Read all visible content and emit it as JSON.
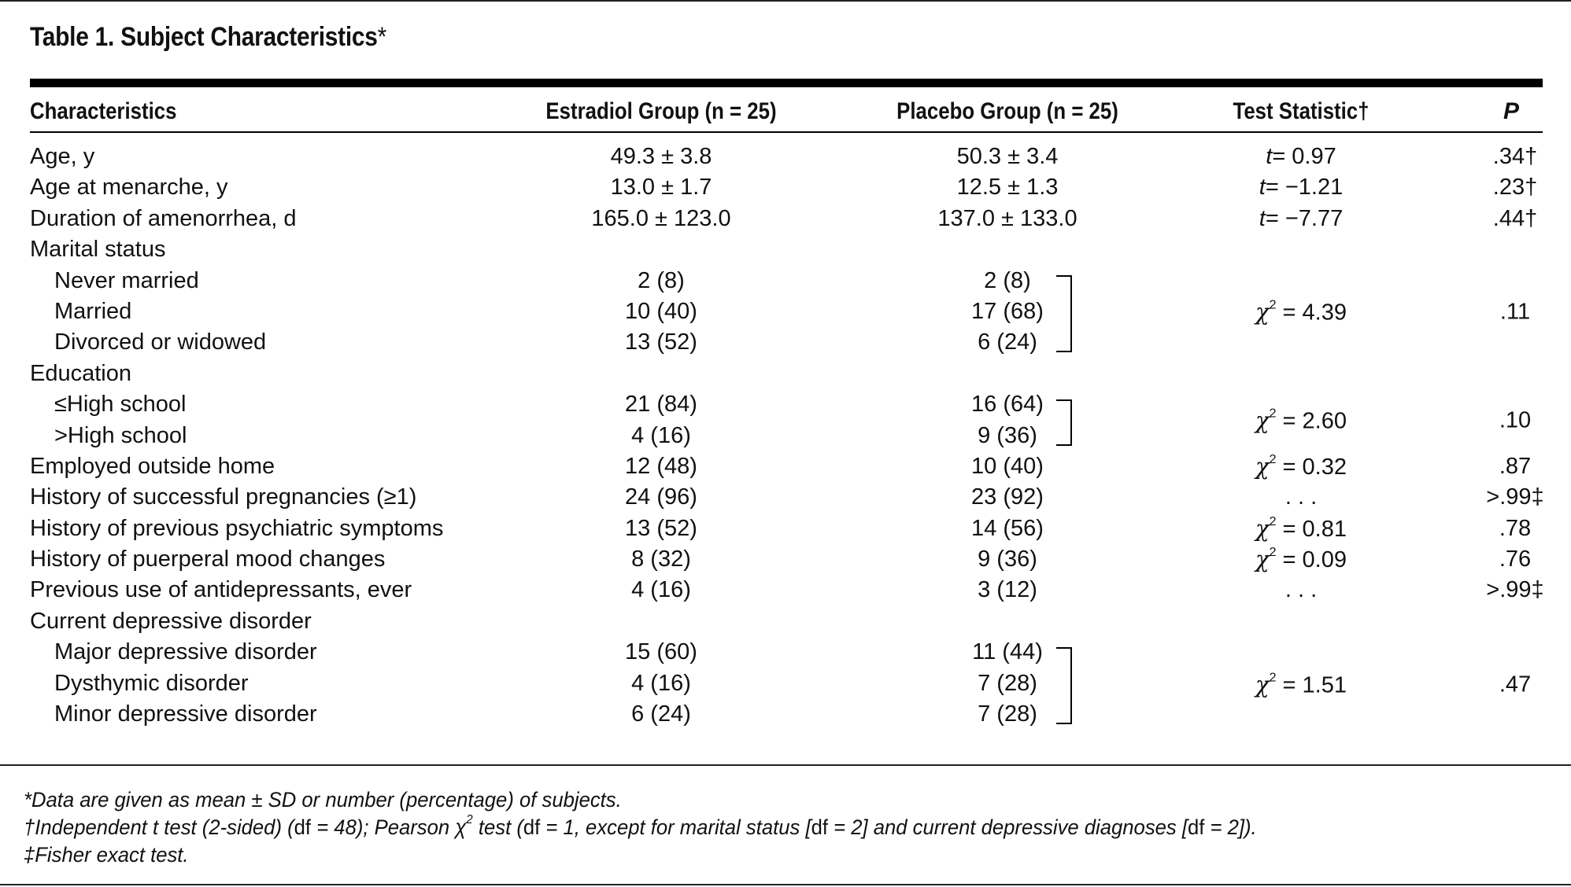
{
  "title": "Table 1. Subject Characteristics",
  "title_marker": "*",
  "headers": {
    "characteristics": "Characteristics",
    "estradiol": "Estradiol Group (n = 25)",
    "placebo": "Placebo Group (n = 25)",
    "test_statistic": "Test Statistic†",
    "p": "P"
  },
  "rows": [
    {
      "label": "Age, y",
      "indent": false,
      "est": "49.3 ± 3.8",
      "pla": "50.3 ± 3.4",
      "stat_prefix": "t",
      "stat": "= 0.97",
      "p": ".34†"
    },
    {
      "label": "Age at menarche, y",
      "indent": false,
      "est": "13.0 ± 1.7",
      "pla": "12.5 ± 1.3",
      "stat_prefix": "t",
      "stat": "= −1.21",
      "p": ".23†"
    },
    {
      "label": "Duration of amenorrhea, d",
      "indent": false,
      "est": "165.0 ± 123.0",
      "pla": "137.0 ± 133.0",
      "stat_prefix": "t",
      "stat": "= −7.77",
      "p": ".44†"
    },
    {
      "label": "Marital status",
      "indent": false,
      "est": "",
      "pla": "",
      "stat_prefix": "",
      "stat": "",
      "p": ""
    },
    {
      "label": "Never married",
      "indent": true,
      "est": "2 (8)",
      "pla": "2 (8)",
      "stat_prefix": "",
      "stat": "",
      "p": ""
    },
    {
      "label": "Married",
      "indent": true,
      "est": "10 (40)",
      "pla": "17 (68)",
      "stat_prefix": "",
      "stat": "",
      "p": ""
    },
    {
      "label": "Divorced or widowed",
      "indent": true,
      "est": "13 (52)",
      "pla": "6 (24)",
      "stat_prefix": "",
      "stat": "",
      "p": ""
    },
    {
      "label": "Education",
      "indent": false,
      "est": "",
      "pla": "",
      "stat_prefix": "",
      "stat": "",
      "p": ""
    },
    {
      "label": "≤High school",
      "indent": true,
      "est": "21 (84)",
      "pla": "16 (64)",
      "stat_prefix": "",
      "stat": "",
      "p": ""
    },
    {
      "label": ">High school",
      "indent": true,
      "est": "4 (16)",
      "pla": "9 (36)",
      "stat_prefix": "",
      "stat": "",
      "p": ""
    },
    {
      "label": "Employed outside home",
      "indent": false,
      "est": "12 (48)",
      "pla": "10 (40)",
      "stat_prefix": "χ2",
      "stat": "= 0.32",
      "p": ".87"
    },
    {
      "label": "History of successful pregnancies (≥1)",
      "indent": false,
      "est": "24 (96)",
      "pla": "23 (92)",
      "stat_prefix": "",
      "stat": ". . .",
      "p": ">.99‡"
    },
    {
      "label": "History of previous psychiatric symptoms",
      "indent": false,
      "est": "13 (52)",
      "pla": "14 (56)",
      "stat_prefix": "χ2",
      "stat": "= 0.81",
      "p": ".78"
    },
    {
      "label": "History of puerperal mood changes",
      "indent": false,
      "est": "8 (32)",
      "pla": "9 (36)",
      "stat_prefix": "χ2",
      "stat": "= 0.09",
      "p": ".76"
    },
    {
      "label": "Previous use of antidepressants, ever",
      "indent": false,
      "est": "4 (16)",
      "pla": "3 (12)",
      "stat_prefix": "",
      "stat": ". . .",
      "p": ">.99‡"
    },
    {
      "label": "Current depressive disorder",
      "indent": false,
      "est": "",
      "pla": "",
      "stat_prefix": "",
      "stat": "",
      "p": ""
    },
    {
      "label": "Major depressive disorder",
      "indent": true,
      "est": "15 (60)",
      "pla": "11 (44)",
      "stat_prefix": "",
      "stat": "",
      "p": ""
    },
    {
      "label": "Dysthymic disorder",
      "indent": true,
      "est": "4 (16)",
      "pla": "7 (28)",
      "stat_prefix": "",
      "stat": "",
      "p": ""
    },
    {
      "label": "Minor depressive disorder",
      "indent": true,
      "est": "6 (24)",
      "pla": "7 (28)",
      "stat_prefix": "",
      "stat": "",
      "p": ""
    }
  ],
  "grouped_stats": [
    {
      "group": "marital",
      "stat_prefix": "χ2",
      "stat": "= 4.39",
      "p": ".11"
    },
    {
      "group": "education",
      "stat_prefix": "χ2",
      "stat": "= 2.60",
      "p": ".10"
    },
    {
      "group": "depressive",
      "stat_prefix": "χ2",
      "stat": "= 1.51",
      "p": ".47"
    }
  ],
  "footnotes": {
    "fn1": "*Data are given as mean ± SD or number (percentage) of subjects.",
    "fn2_a": "†Independent ",
    "fn2_t": "t",
    "fn2_b": " test (2-sided) (",
    "fn2_df1": "df",
    "fn2_c": " = 48); Pearson χ",
    "fn2_sup": "2",
    "fn2_d": " test (",
    "fn2_df2": "df",
    "fn2_e": " = 1, except for marital status [",
    "fn2_df3": "df",
    "fn2_f": " = 2] and current depressive diagnoses [",
    "fn2_df4": "df",
    "fn2_g": " = 2]).",
    "fn3": "‡Fisher exact test."
  }
}
